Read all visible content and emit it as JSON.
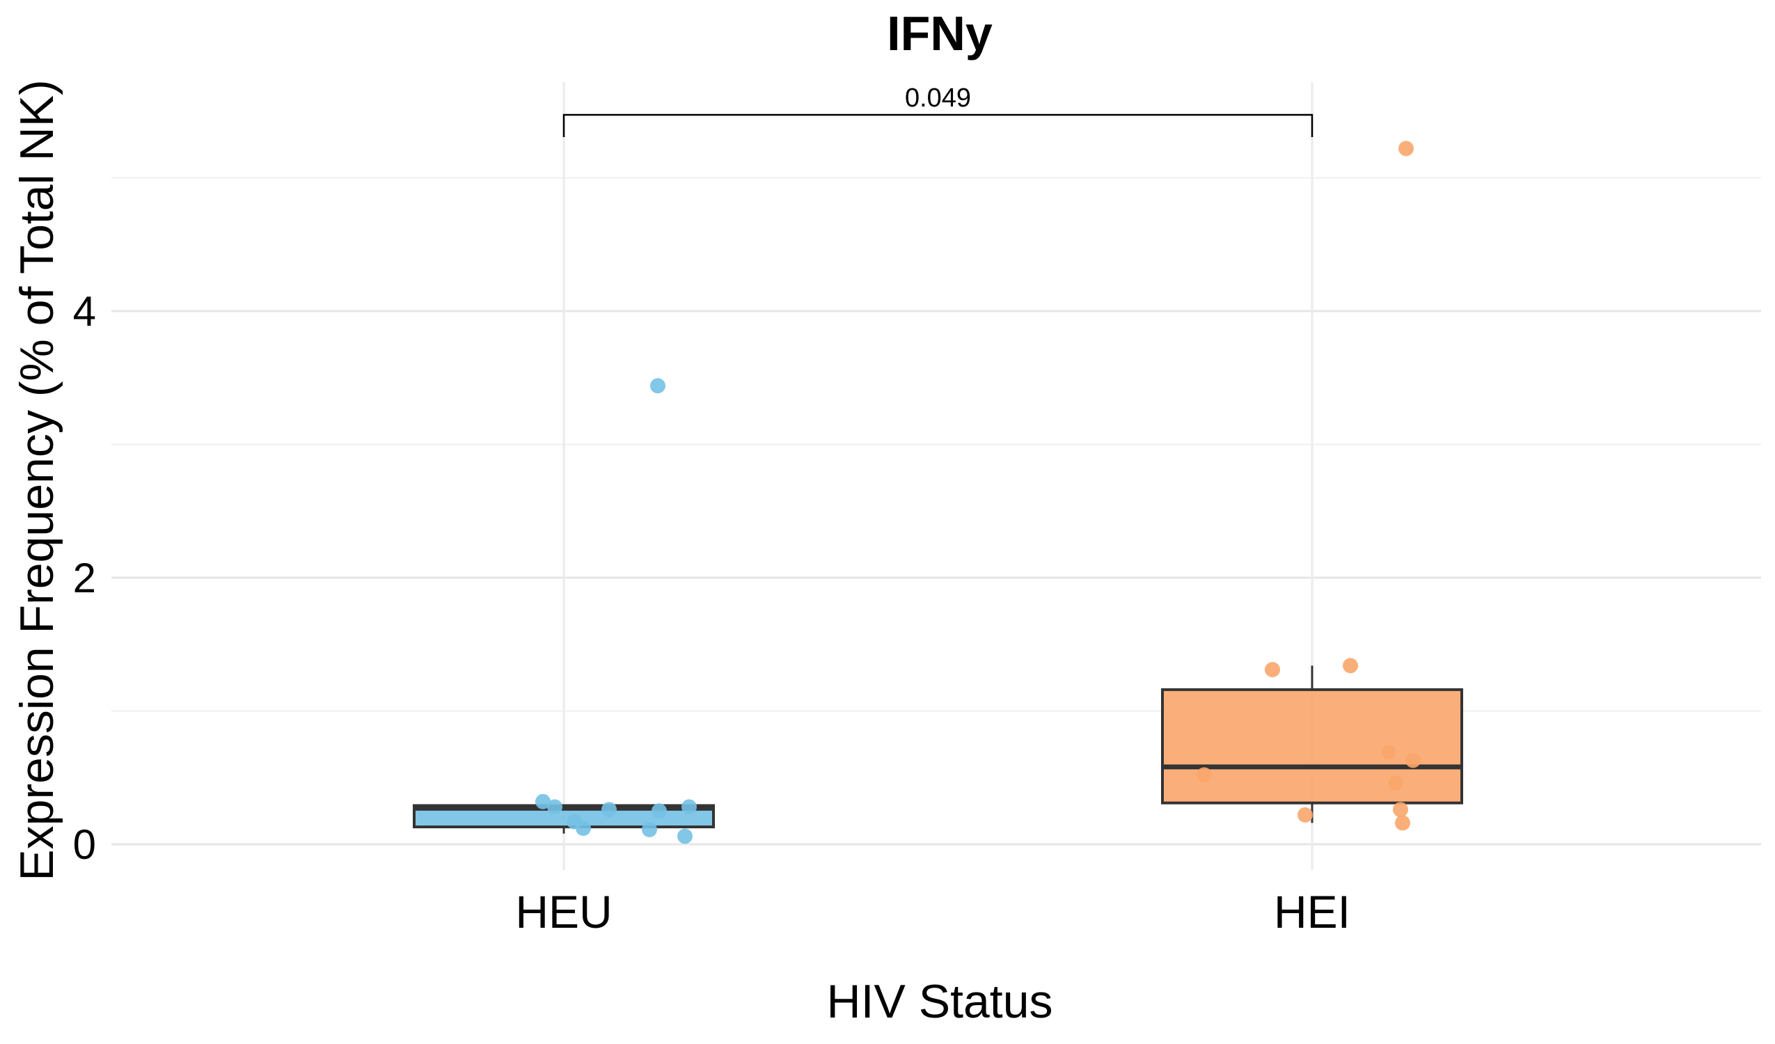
{
  "chart_data": {
    "type": "box",
    "title": "IFNy",
    "xlabel": "HIV Status",
    "ylabel": "Expression Frequency (% of Total NK)",
    "ylim": [
      -0.1,
      5.95
    ],
    "y_ticks": [
      0,
      2,
      4
    ],
    "y_minor_gridlines": [
      1,
      3,
      5
    ],
    "grid": true,
    "legend": "none",
    "categories": [
      "HEU",
      "HEI"
    ],
    "groups": [
      {
        "category": "HEU",
        "color": "#74C1E6",
        "box": {
          "min": 0.08,
          "q1": 0.13,
          "median": 0.27,
          "q3": 0.29,
          "max": 0.3
        },
        "points": [
          0.32,
          0.28,
          0.17,
          0.12,
          0.26,
          0.11,
          0.25,
          0.28,
          0.06,
          3.44
        ],
        "jitter": [
          -0.3,
          -0.13,
          0.15,
          0.28,
          0.65,
          1.23,
          1.37,
          1.8,
          1.74,
          1.35
        ]
      },
      {
        "category": "HEI",
        "color": "#F9A66C",
        "box": {
          "min": 0.16,
          "q1": 0.31,
          "median": 0.58,
          "q3": 1.16,
          "max": 1.34
        },
        "points": [
          0.52,
          1.31,
          0.22,
          1.34,
          0.69,
          0.46,
          0.26,
          0.16,
          0.63,
          5.22
        ],
        "jitter": [
          -1.55,
          -0.57,
          -0.1,
          0.55,
          1.1,
          1.2,
          1.27,
          1.3,
          1.45,
          1.35
        ]
      }
    ],
    "comparisons": [
      {
        "group1": "HEU",
        "group2": "HEI",
        "label": "0.049",
        "y": 5.5
      }
    ]
  }
}
